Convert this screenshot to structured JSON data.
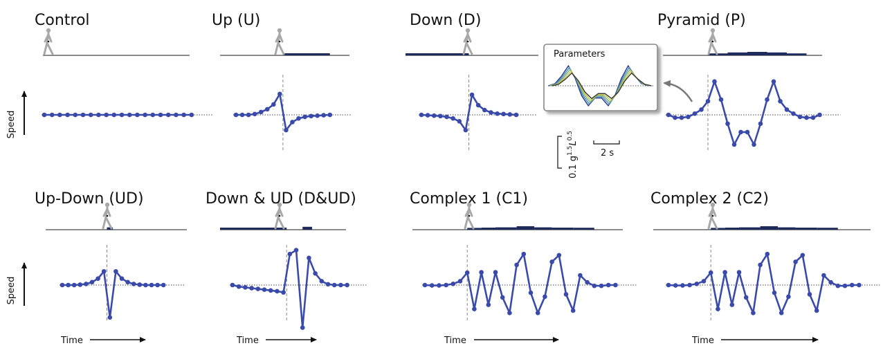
{
  "figure": {
    "speed_label": "Speed",
    "time_label": "Time",
    "scalebar_speed_label_prefix": "0.1 g",
    "scalebar_speed_sup1": "1.5",
    "scalebar_speed_mid": "L",
    "scalebar_speed_sup2": "0.5",
    "scalebar_time_label": "2 s",
    "inset_title": "Parameters"
  },
  "colors": {
    "series": "#3a4aaa",
    "bar": "#1f2a5c",
    "track": "#666666",
    "walker": "#a8a8a8",
    "dashed": "#888888",
    "inset_lines": [
      "#2b3a8f",
      "#4a8fbf",
      "#7fb07f",
      "#c9c94a",
      "#3a3a3a"
    ]
  },
  "chart_data": [
    {
      "type": "line",
      "title": "Control",
      "series": [
        {
          "values": [
            0,
            0,
            0,
            0,
            0,
            0,
            0,
            0,
            0,
            0,
            0,
            0,
            0,
            0,
            0,
            0,
            0,
            0,
            0,
            0
          ]
        }
      ],
      "perturbation": {
        "start": null,
        "bars": []
      }
    },
    {
      "type": "line",
      "title": "Up (U)",
      "series": [
        {
          "values": [
            0,
            0,
            0,
            0.02,
            0.07,
            0.14,
            0.26,
            0.52,
            -0.38,
            -0.18,
            -0.09,
            -0.05,
            -0.03,
            -0.02,
            -0.01,
            0
          ]
        }
      ],
      "perturbation": {
        "start": 7.5,
        "bars": [
          {
            "from": 7.5,
            "to": 15,
            "h": 0.5
          }
        ]
      }
    },
    {
      "type": "line",
      "title": "Down (D)",
      "series": [
        {
          "values": [
            0,
            -0.01,
            -0.02,
            -0.03,
            -0.05,
            -0.09,
            -0.16,
            -0.38,
            0.5,
            0.24,
            0.12,
            0.06,
            0.03,
            0.02,
            0.01,
            0
          ]
        }
      ],
      "perturbation": {
        "start": 7.5,
        "bars": [
          {
            "from": -3,
            "to": 7.5,
            "h": 0.5
          }
        ]
      }
    },
    {
      "type": "line",
      "title": "Pyramid (P)",
      "series": [
        {
          "values": [
            0,
            -0.07,
            -0.07,
            -0.05,
            0.03,
            0.13,
            0.34,
            0.83,
            0.38,
            -0.22,
            -0.74,
            -0.43,
            -0.43,
            -0.74,
            -0.22,
            0.38,
            0.83,
            0.34,
            0.13,
            0.03,
            -0.05,
            -0.07,
            -0.07,
            0
          ]
        }
      ],
      "perturbation": {
        "start": 6,
        "bars": [
          {
            "from": 6,
            "to": 9,
            "h": 0.45
          },
          {
            "from": 9,
            "to": 12,
            "h": 0.8
          },
          {
            "from": 12,
            "to": 15,
            "h": 1
          },
          {
            "from": 15,
            "to": 18,
            "h": 0.8
          },
          {
            "from": 18,
            "to": 21,
            "h": 0.45
          }
        ]
      }
    },
    {
      "type": "line",
      "title": "Up-Down (UD)",
      "series": [
        {
          "values": [
            0,
            0,
            0,
            0.01,
            0.03,
            0.08,
            0.18,
            0.38,
            -0.9,
            0.38,
            0.18,
            0.08,
            0.03,
            0.01,
            0,
            0,
            0,
            0
          ]
        }
      ],
      "perturbation": {
        "start": 7.5,
        "bars": [
          {
            "from": 7.5,
            "to": 8.5,
            "h": 0.6
          }
        ]
      }
    },
    {
      "type": "line",
      "title": "Down & UD (D&UD)",
      "series": [
        {
          "values": [
            0,
            -0.04,
            -0.06,
            -0.08,
            -0.1,
            -0.12,
            -0.14,
            -0.16,
            -0.19,
            0.8,
            0.9,
            -1.1,
            0.7,
            0.3,
            0.1,
            0.02,
            0,
            0,
            0
          ]
        }
      ],
      "perturbation": {
        "start": 8.5,
        "bars": [
          {
            "from": -3,
            "to": 8.5,
            "h": 0.5
          },
          {
            "from": 11,
            "to": 12.5,
            "h": 0.8
          }
        ]
      }
    },
    {
      "type": "line",
      "title": "Complex 1 (C1)",
      "series": [
        {
          "values": [
            0,
            -0.01,
            -0.01,
            0,
            0.03,
            0.1,
            0.32,
            -0.62,
            0.33,
            -0.51,
            0.33,
            -0.32,
            -0.72,
            0.52,
            0.8,
            -0.2,
            -0.72,
            -0.3,
            0.6,
            0.77,
            -0.24,
            -0.66,
            0.25,
            0.07,
            -0.02,
            -0.02,
            0,
            0
          ]
        }
      ],
      "perturbation": {
        "start": 6,
        "bars": [
          {
            "from": 6,
            "to": 8,
            "h": 0.4
          },
          {
            "from": 8,
            "to": 10,
            "h": 0.5
          },
          {
            "from": 10,
            "to": 13,
            "h": 0.6
          },
          {
            "from": 13,
            "to": 15.5,
            "h": 1
          },
          {
            "from": 15.5,
            "to": 18,
            "h": 0.6
          },
          {
            "from": 18,
            "to": 21,
            "h": 0.5
          },
          {
            "from": 21,
            "to": 24,
            "h": 0.45
          }
        ]
      }
    },
    {
      "type": "line",
      "title": "Complex 2 (C2)",
      "series": [
        {
          "values": [
            0,
            -0.01,
            -0.01,
            0,
            0.03,
            0.1,
            0.32,
            -0.62,
            0.33,
            -0.51,
            0.33,
            -0.32,
            -0.72,
            0.52,
            0.8,
            -0.2,
            -0.72,
            -0.3,
            0.6,
            0.77,
            -0.24,
            -0.66,
            0.25,
            0.07,
            -0.02,
            -0.02,
            0,
            0
          ]
        }
      ],
      "perturbation": {
        "start": 6,
        "bars": [
          {
            "from": 6,
            "to": 8,
            "h": 0.4
          },
          {
            "from": 8,
            "to": 10,
            "h": 0.5
          },
          {
            "from": 10,
            "to": 13,
            "h": 0.6
          },
          {
            "from": 13,
            "to": 15.5,
            "h": 1
          },
          {
            "from": 15.5,
            "to": 18,
            "h": 0.6
          },
          {
            "from": 18,
            "to": 21,
            "h": 0.5
          },
          {
            "from": 21,
            "to": 24,
            "h": 0.45
          }
        ]
      }
    }
  ]
}
